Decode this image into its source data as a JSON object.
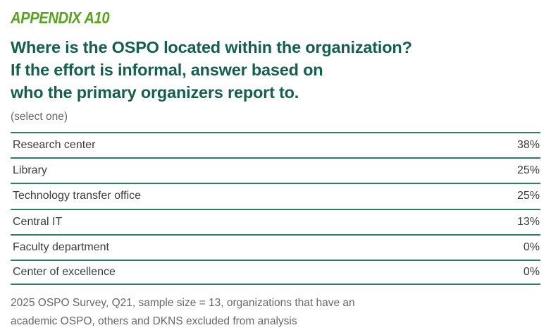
{
  "appendix": {
    "label": "APPENDIX A10"
  },
  "title": {
    "line1": "Where is the OSPO located within the organization?",
    "line2": "If the effort is informal, answer based on",
    "line3": "who the primary organizers report to."
  },
  "subtitle": "(select one)",
  "chart_data": {
    "type": "table",
    "title": "Where is the OSPO located within the organization? If the effort is informal, answer based on who the primary organizers report to.",
    "subtitle": "(select one)",
    "categories": [
      "Research center",
      "Library",
      "Technology transfer office",
      "Central IT",
      "Faculty department",
      "Center of excellence"
    ],
    "values": [
      38,
      25,
      25,
      13,
      0,
      0
    ],
    "value_labels": [
      "38%",
      "25%",
      "25%",
      "13%",
      "0%",
      "0%"
    ],
    "unit": "%"
  },
  "footnote": {
    "line1": "2025 OSPO Survey, Q21, sample size = 13, organizations that have an",
    "line2": "academic OSPO, others and DKNS excluded from analysis"
  },
  "colors": {
    "accent_green": "#58a41c",
    "heading_teal": "#14604f",
    "rule_teal": "#2e7c6a",
    "row_text": "#3c3c3c",
    "muted_text": "#686868",
    "background": "#ffffff"
  }
}
